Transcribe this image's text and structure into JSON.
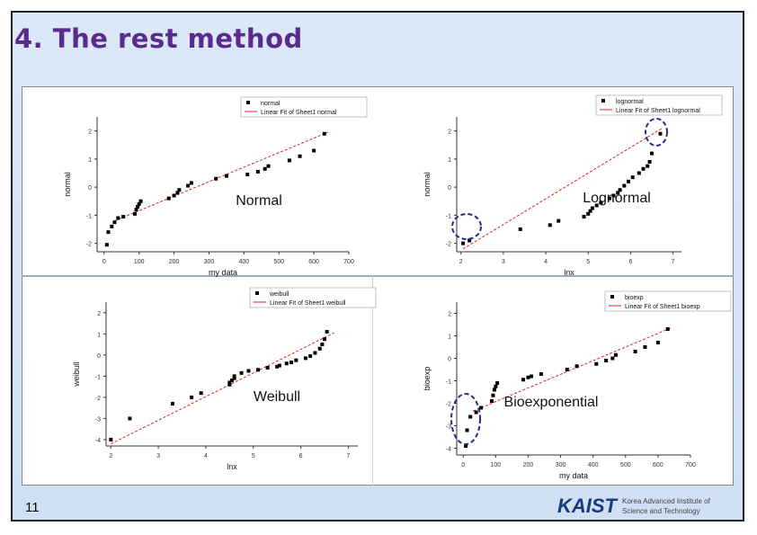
{
  "slide": {
    "title": "4. The rest method",
    "page_number": "11",
    "logo_text": "KAIST",
    "logo_subtitle_1": "Korea Advanced Institute of",
    "logo_subtitle_2": "Science and Technology"
  },
  "colors": {
    "title": "#5a2a8c",
    "fit_line": "#e02020",
    "points": "#000000",
    "highlight_ellipse": "#2a2a8a"
  },
  "chart_data": [
    {
      "type": "scatter",
      "title": "Normal",
      "xlabel": "my data",
      "ylabel": "normal",
      "legend": [
        "normal",
        "Linear Fit of Sheet1 normal"
      ],
      "xlim": [
        -20,
        700
      ],
      "ylim": [
        -2.3,
        2.5
      ],
      "xticks": [
        "0",
        "100",
        "200",
        "300",
        "400",
        "500",
        "600",
        "700"
      ],
      "yticks": [
        "-2",
        "-1",
        "0",
        "1",
        "2"
      ],
      "points": [
        [
          8,
          -2.05
        ],
        [
          12,
          -1.6
        ],
        [
          22,
          -1.4
        ],
        [
          30,
          -1.25
        ],
        [
          40,
          -1.1
        ],
        [
          55,
          -1.05
        ],
        [
          88,
          -0.95
        ],
        [
          92,
          -0.8
        ],
        [
          96,
          -0.7
        ],
        [
          100,
          -0.6
        ],
        [
          105,
          -0.5
        ],
        [
          185,
          -0.4
        ],
        [
          200,
          -0.3
        ],
        [
          210,
          -0.2
        ],
        [
          215,
          -0.1
        ],
        [
          240,
          0.05
        ],
        [
          250,
          0.15
        ],
        [
          320,
          0.3
        ],
        [
          350,
          0.4
        ],
        [
          410,
          0.45
        ],
        [
          440,
          0.55
        ],
        [
          460,
          0.65
        ],
        [
          470,
          0.75
        ],
        [
          530,
          0.95
        ],
        [
          560,
          1.1
        ],
        [
          600,
          1.3
        ],
        [
          630,
          1.9
        ]
      ],
      "fit": [
        [
          30,
          -1.2
        ],
        [
          640,
          1.95
        ]
      ]
    },
    {
      "type": "scatter",
      "title": "Lognormal",
      "xlabel": "lnx",
      "ylabel": "normal",
      "legend": [
        "lognormal",
        "Linear Fit of Sheet1 lognormal"
      ],
      "xlim": [
        1.9,
        7.2
      ],
      "ylim": [
        -2.3,
        2.5
      ],
      "xticks": [
        "2",
        "3",
        "4",
        "5",
        "6",
        "7"
      ],
      "yticks": [
        "-2",
        "-1",
        "0",
        "1",
        "2"
      ],
      "points": [
        [
          2.05,
          -2.0
        ],
        [
          2.2,
          -1.9
        ],
        [
          3.4,
          -1.5
        ],
        [
          4.1,
          -1.35
        ],
        [
          4.3,
          -1.2
        ],
        [
          4.9,
          -1.05
        ],
        [
          5.0,
          -0.95
        ],
        [
          5.05,
          -0.85
        ],
        [
          5.1,
          -0.75
        ],
        [
          5.2,
          -0.65
        ],
        [
          5.3,
          -0.55
        ],
        [
          5.5,
          -0.4
        ],
        [
          5.6,
          -0.3
        ],
        [
          5.7,
          -0.2
        ],
        [
          5.75,
          -0.1
        ],
        [
          5.85,
          0.05
        ],
        [
          5.95,
          0.2
        ],
        [
          6.05,
          0.35
        ],
        [
          6.2,
          0.5
        ],
        [
          6.3,
          0.65
        ],
        [
          6.4,
          0.75
        ],
        [
          6.45,
          0.9
        ],
        [
          6.5,
          1.2
        ],
        [
          6.7,
          1.9
        ]
      ],
      "fit": [
        [
          2.05,
          -2.2
        ],
        [
          6.75,
          2.1
        ]
      ]
    },
    {
      "type": "scatter",
      "title": "Weibull",
      "xlabel": "lnx",
      "ylabel": "weibull",
      "legend": [
        "weibull",
        "Linear Fit of Sheet1 weibull"
      ],
      "xlim": [
        1.9,
        7.2
      ],
      "ylim": [
        -4.3,
        2.5
      ],
      "xticks": [
        "2",
        "3",
        "4",
        "5",
        "6",
        "7"
      ],
      "yticks": [
        "-4",
        "-3",
        "-2",
        "-1",
        "0",
        "1",
        "2"
      ],
      "points": [
        [
          2.0,
          -4.0
        ],
        [
          2.4,
          -3.0
        ],
        [
          3.3,
          -2.3
        ],
        [
          3.7,
          -2.0
        ],
        [
          3.9,
          -1.8
        ],
        [
          4.5,
          -1.4
        ],
        [
          4.5,
          -1.3
        ],
        [
          4.55,
          -1.2
        ],
        [
          4.6,
          -1.1
        ],
        [
          4.6,
          -1.0
        ],
        [
          4.75,
          -0.85
        ],
        [
          4.9,
          -0.75
        ],
        [
          5.1,
          -0.7
        ],
        [
          5.3,
          -0.6
        ],
        [
          5.5,
          -0.55
        ],
        [
          5.55,
          -0.5
        ],
        [
          5.7,
          -0.4
        ],
        [
          5.8,
          -0.35
        ],
        [
          5.9,
          -0.25
        ],
        [
          6.1,
          -0.15
        ],
        [
          6.2,
          -0.05
        ],
        [
          6.3,
          0.1
        ],
        [
          6.4,
          0.3
        ],
        [
          6.45,
          0.5
        ],
        [
          6.5,
          0.75
        ],
        [
          6.55,
          1.1
        ]
      ],
      "fit": [
        [
          2.0,
          -4.2
        ],
        [
          6.7,
          1.05
        ]
      ]
    },
    {
      "type": "scatter",
      "title": "Bioexponential",
      "xlabel": "my data",
      "ylabel": "bioexp",
      "legend": [
        "bioexp",
        "Linear Fit of Sheet1 bioexp"
      ],
      "xlim": [
        -20,
        700
      ],
      "ylim": [
        -4.3,
        2.5
      ],
      "xticks": [
        "0",
        "100",
        "200",
        "300",
        "400",
        "500",
        "600",
        "700"
      ],
      "yticks": [
        "-4",
        "-3",
        "-2",
        "-1",
        "0",
        "1",
        "2"
      ],
      "points": [
        [
          8,
          -3.9
        ],
        [
          12,
          -3.2
        ],
        [
          22,
          -2.6
        ],
        [
          40,
          -2.4
        ],
        [
          55,
          -2.2
        ],
        [
          88,
          -1.9
        ],
        [
          92,
          -1.65
        ],
        [
          96,
          -1.4
        ],
        [
          100,
          -1.25
        ],
        [
          105,
          -1.1
        ],
        [
          185,
          -0.95
        ],
        [
          200,
          -0.85
        ],
        [
          210,
          -0.8
        ],
        [
          240,
          -0.7
        ],
        [
          320,
          -0.5
        ],
        [
          350,
          -0.35
        ],
        [
          410,
          -0.25
        ],
        [
          440,
          -0.1
        ],
        [
          460,
          0.0
        ],
        [
          470,
          0.15
        ],
        [
          530,
          0.3
        ],
        [
          560,
          0.5
        ],
        [
          600,
          0.7
        ],
        [
          630,
          1.3
        ]
      ],
      "fit": [
        [
          30,
          -2.35
        ],
        [
          640,
          1.35
        ]
      ]
    }
  ]
}
